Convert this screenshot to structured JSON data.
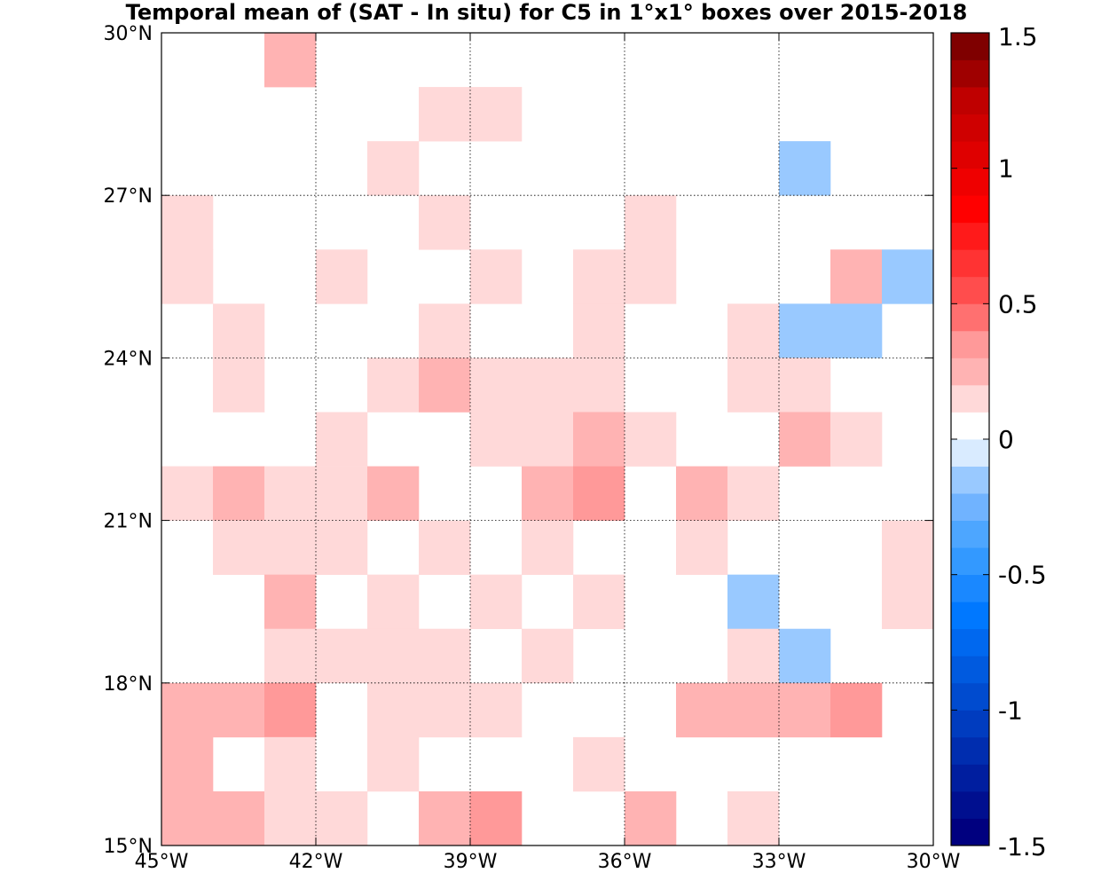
{
  "chart_data": {
    "type": "heatmap",
    "title": "Temporal mean of (SAT - In situ) for C5 in 1°x1° boxes over 2015-2018",
    "x_axis": {
      "range": [
        -45,
        -30
      ],
      "ticks": [
        -45,
        -42,
        -39,
        -36,
        -33,
        -30
      ],
      "tick_labels": [
        "45°W",
        "42°W",
        "39°W",
        "36°W",
        "33°W",
        "30°W"
      ]
    },
    "y_axis": {
      "range": [
        15,
        30
      ],
      "ticks": [
        15,
        18,
        21,
        24,
        27,
        30
      ],
      "tick_labels": [
        "15°N",
        "18°N",
        "21°N",
        "24°N",
        "27°N",
        "30°N"
      ]
    },
    "grid": true,
    "colorbar": {
      "range": [
        -1.5,
        1.5
      ],
      "levels": 30,
      "placement": "right",
      "ticks": [
        1.5,
        1,
        0.5,
        0,
        -0.5,
        -1,
        -1.5
      ],
      "tick_labels": [
        "1.5",
        "1",
        "0.5",
        "0",
        "-0.5",
        "-1",
        "-1.5"
      ],
      "colors": [
        "#00007f",
        "#000f8f",
        "#001e9f",
        "#002daf",
        "#003cbf",
        "#004bcf",
        "#005adf",
        "#0068ef",
        "#0078ff",
        "#1a88ff",
        "#3399ff",
        "#4da6ff",
        "#70b3ff",
        "#99c9ff",
        "#d9ebff",
        "#ffffff",
        "#ffd9d9",
        "#ffb3b3",
        "#ff9999",
        "#ff7070",
        "#ff4d4d",
        "#ff3333",
        "#ff1a1a",
        "#ff0000",
        "#ef0000",
        "#df0000",
        "#cf0000",
        "#bf0000",
        "#9f0000",
        "#7f0000"
      ]
    },
    "cells": [
      {
        "lon": -43,
        "lat": 29,
        "value": 0.25
      },
      {
        "lon": -40,
        "lat": 28,
        "value": 0.1
      },
      {
        "lon": -39,
        "lat": 28,
        "value": 0.1
      },
      {
        "lon": -41,
        "lat": 27,
        "value": 0.1
      },
      {
        "lon": -33,
        "lat": 27,
        "value": -0.1
      },
      {
        "lon": -45,
        "lat": 26,
        "value": 0.1
      },
      {
        "lon": -40,
        "lat": 26,
        "value": 0.1
      },
      {
        "lon": -36,
        "lat": 26,
        "value": 0.1
      },
      {
        "lon": -45,
        "lat": 25,
        "value": 0.1
      },
      {
        "lon": -42,
        "lat": 25,
        "value": 0.1
      },
      {
        "lon": -39,
        "lat": 25,
        "value": 0.1
      },
      {
        "lon": -37,
        "lat": 25,
        "value": 0.1
      },
      {
        "lon": -36,
        "lat": 25,
        "value": 0.1
      },
      {
        "lon": -32,
        "lat": 25,
        "value": 0.25
      },
      {
        "lon": -31,
        "lat": 25,
        "value": -0.1
      },
      {
        "lon": -44,
        "lat": 24,
        "value": 0.1
      },
      {
        "lon": -40,
        "lat": 24,
        "value": 0.1
      },
      {
        "lon": -37,
        "lat": 24,
        "value": 0.1
      },
      {
        "lon": -34,
        "lat": 24,
        "value": 0.1
      },
      {
        "lon": -33,
        "lat": 24,
        "value": -0.1
      },
      {
        "lon": -32,
        "lat": 24,
        "value": -0.1
      },
      {
        "lon": -44,
        "lat": 23,
        "value": 0.1
      },
      {
        "lon": -41,
        "lat": 23,
        "value": 0.1
      },
      {
        "lon": -40,
        "lat": 23,
        "value": 0.25
      },
      {
        "lon": -39,
        "lat": 23,
        "value": 0.1
      },
      {
        "lon": -38,
        "lat": 23,
        "value": 0.1
      },
      {
        "lon": -37,
        "lat": 23,
        "value": 0.1
      },
      {
        "lon": -34,
        "lat": 23,
        "value": 0.1
      },
      {
        "lon": -33,
        "lat": 23,
        "value": 0.1
      },
      {
        "lon": -42,
        "lat": 22,
        "value": 0.1
      },
      {
        "lon": -39,
        "lat": 22,
        "value": 0.1
      },
      {
        "lon": -38,
        "lat": 22,
        "value": 0.1
      },
      {
        "lon": -37,
        "lat": 22,
        "value": 0.25
      },
      {
        "lon": -36,
        "lat": 22,
        "value": 0.1
      },
      {
        "lon": -33,
        "lat": 22,
        "value": 0.25
      },
      {
        "lon": -32,
        "lat": 22,
        "value": 0.1
      },
      {
        "lon": -45,
        "lat": 21,
        "value": 0.1
      },
      {
        "lon": -44,
        "lat": 21,
        "value": 0.25
      },
      {
        "lon": -43,
        "lat": 21,
        "value": 0.1
      },
      {
        "lon": -42,
        "lat": 21,
        "value": 0.1
      },
      {
        "lon": -41,
        "lat": 21,
        "value": 0.25
      },
      {
        "lon": -38,
        "lat": 21,
        "value": 0.25
      },
      {
        "lon": -37,
        "lat": 21,
        "value": 0.35
      },
      {
        "lon": -35,
        "lat": 21,
        "value": 0.25
      },
      {
        "lon": -34,
        "lat": 21,
        "value": 0.1
      },
      {
        "lon": -44,
        "lat": 20,
        "value": 0.1
      },
      {
        "lon": -43,
        "lat": 20,
        "value": 0.1
      },
      {
        "lon": -42,
        "lat": 20,
        "value": 0.1
      },
      {
        "lon": -40,
        "lat": 20,
        "value": 0.1
      },
      {
        "lon": -38,
        "lat": 20,
        "value": 0.1
      },
      {
        "lon": -35,
        "lat": 20,
        "value": 0.1
      },
      {
        "lon": -31,
        "lat": 20,
        "value": 0.1
      },
      {
        "lon": -43,
        "lat": 19,
        "value": 0.25
      },
      {
        "lon": -41,
        "lat": 19,
        "value": 0.1
      },
      {
        "lon": -39,
        "lat": 19,
        "value": 0.1
      },
      {
        "lon": -37,
        "lat": 19,
        "value": 0.1
      },
      {
        "lon": -34,
        "lat": 19,
        "value": -0.1
      },
      {
        "lon": -31,
        "lat": 19,
        "value": 0.1
      },
      {
        "lon": -43,
        "lat": 18,
        "value": 0.1
      },
      {
        "lon": -42,
        "lat": 18,
        "value": 0.1
      },
      {
        "lon": -41,
        "lat": 18,
        "value": 0.1
      },
      {
        "lon": -40,
        "lat": 18,
        "value": 0.1
      },
      {
        "lon": -38,
        "lat": 18,
        "value": 0.1
      },
      {
        "lon": -34,
        "lat": 18,
        "value": 0.1
      },
      {
        "lon": -33,
        "lat": 18,
        "value": -0.1
      },
      {
        "lon": -45,
        "lat": 17,
        "value": 0.25
      },
      {
        "lon": -44,
        "lat": 17,
        "value": 0.25
      },
      {
        "lon": -43,
        "lat": 17,
        "value": 0.35
      },
      {
        "lon": -41,
        "lat": 17,
        "value": 0.1
      },
      {
        "lon": -40,
        "lat": 17,
        "value": 0.1
      },
      {
        "lon": -39,
        "lat": 17,
        "value": 0.1
      },
      {
        "lon": -35,
        "lat": 17,
        "value": 0.25
      },
      {
        "lon": -34,
        "lat": 17,
        "value": 0.25
      },
      {
        "lon": -33,
        "lat": 17,
        "value": 0.25
      },
      {
        "lon": -32,
        "lat": 17,
        "value": 0.35
      },
      {
        "lon": -45,
        "lat": 16,
        "value": 0.25
      },
      {
        "lon": -43,
        "lat": 16,
        "value": 0.1
      },
      {
        "lon": -41,
        "lat": 16,
        "value": 0.1
      },
      {
        "lon": -37,
        "lat": 16,
        "value": 0.1
      },
      {
        "lon": -45,
        "lat": 15,
        "value": 0.25
      },
      {
        "lon": -44,
        "lat": 15,
        "value": 0.25
      },
      {
        "lon": -43,
        "lat": 15,
        "value": 0.1
      },
      {
        "lon": -42,
        "lat": 15,
        "value": 0.1
      },
      {
        "lon": -40,
        "lat": 15,
        "value": 0.25
      },
      {
        "lon": -39,
        "lat": 15,
        "value": 0.35
      },
      {
        "lon": -36,
        "lat": 15,
        "value": 0.25
      },
      {
        "lon": -34,
        "lat": 15,
        "value": 0.1
      }
    ]
  }
}
